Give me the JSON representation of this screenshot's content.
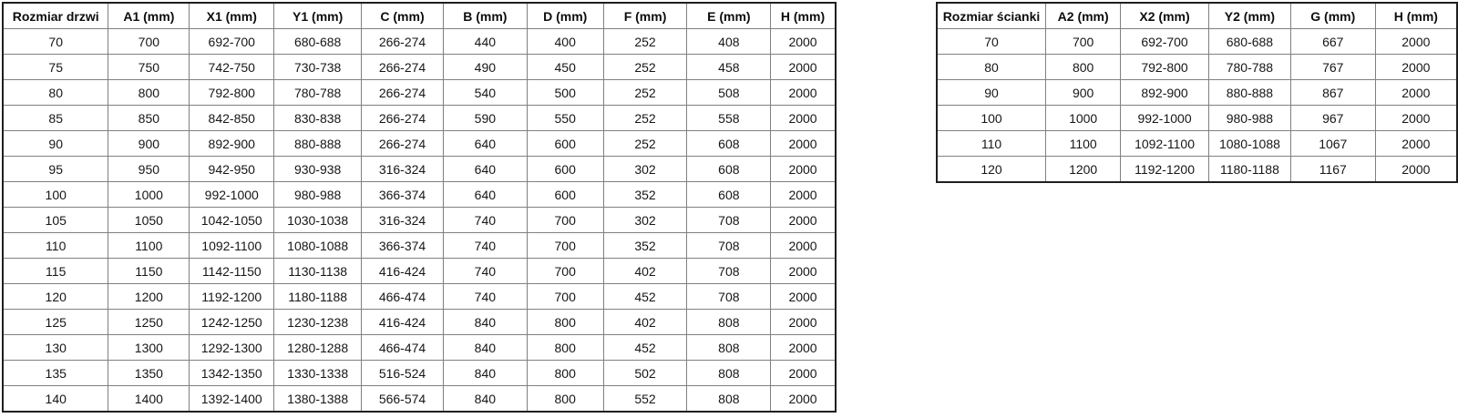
{
  "door_table": {
    "title": "door sizes table",
    "headers": [
      "Rozmiar drzwi",
      "A1 (mm)",
      "X1 (mm)",
      "Y1 (mm)",
      "C (mm)",
      "B (mm)",
      "D (mm)",
      "F (mm)",
      "E (mm)",
      "H (mm)"
    ],
    "rows": [
      [
        "70",
        "700",
        "692-700",
        "680-688",
        "266-274",
        "440",
        "400",
        "252",
        "408",
        "2000"
      ],
      [
        "75",
        "750",
        "742-750",
        "730-738",
        "266-274",
        "490",
        "450",
        "252",
        "458",
        "2000"
      ],
      [
        "80",
        "800",
        "792-800",
        "780-788",
        "266-274",
        "540",
        "500",
        "252",
        "508",
        "2000"
      ],
      [
        "85",
        "850",
        "842-850",
        "830-838",
        "266-274",
        "590",
        "550",
        "252",
        "558",
        "2000"
      ],
      [
        "90",
        "900",
        "892-900",
        "880-888",
        "266-274",
        "640",
        "600",
        "252",
        "608",
        "2000"
      ],
      [
        "95",
        "950",
        "942-950",
        "930-938",
        "316-324",
        "640",
        "600",
        "302",
        "608",
        "2000"
      ],
      [
        "100",
        "1000",
        "992-1000",
        "980-988",
        "366-374",
        "640",
        "600",
        "352",
        "608",
        "2000"
      ],
      [
        "105",
        "1050",
        "1042-1050",
        "1030-1038",
        "316-324",
        "740",
        "700",
        "302",
        "708",
        "2000"
      ],
      [
        "110",
        "1100",
        "1092-1100",
        "1080-1088",
        "366-374",
        "740",
        "700",
        "352",
        "708",
        "2000"
      ],
      [
        "115",
        "1150",
        "1142-1150",
        "1130-1138",
        "416-424",
        "740",
        "700",
        "402",
        "708",
        "2000"
      ],
      [
        "120",
        "1200",
        "1192-1200",
        "1180-1188",
        "466-474",
        "740",
        "700",
        "452",
        "708",
        "2000"
      ],
      [
        "125",
        "1250",
        "1242-1250",
        "1230-1238",
        "416-424",
        "840",
        "800",
        "402",
        "808",
        "2000"
      ],
      [
        "130",
        "1300",
        "1292-1300",
        "1280-1288",
        "466-474",
        "840",
        "800",
        "452",
        "808",
        "2000"
      ],
      [
        "135",
        "1350",
        "1342-1350",
        "1330-1338",
        "516-524",
        "840",
        "800",
        "502",
        "808",
        "2000"
      ],
      [
        "140",
        "1400",
        "1392-1400",
        "1380-1388",
        "566-574",
        "840",
        "800",
        "552",
        "808",
        "2000"
      ]
    ]
  },
  "wall_table": {
    "title": "wall panel sizes table",
    "headers": [
      "Rozmiar ścianki",
      "A2 (mm)",
      "X2 (mm)",
      "Y2 (mm)",
      "G (mm)",
      "H (mm)"
    ],
    "rows": [
      [
        "70",
        "700",
        "692-700",
        "680-688",
        "667",
        "2000"
      ],
      [
        "80",
        "800",
        "792-800",
        "780-788",
        "767",
        "2000"
      ],
      [
        "90",
        "900",
        "892-900",
        "880-888",
        "867",
        "2000"
      ],
      [
        "100",
        "1000",
        "992-1000",
        "980-988",
        "967",
        "2000"
      ],
      [
        "110",
        "1100",
        "1092-1100",
        "1080-1088",
        "1067",
        "2000"
      ],
      [
        "120",
        "1200",
        "1192-1200",
        "1180-1188",
        "1167",
        "2000"
      ]
    ]
  },
  "colors": {
    "background": "#ffffff",
    "grid_line": "#808080",
    "outer_border": "#1f1f1f",
    "text": "#161616"
  }
}
